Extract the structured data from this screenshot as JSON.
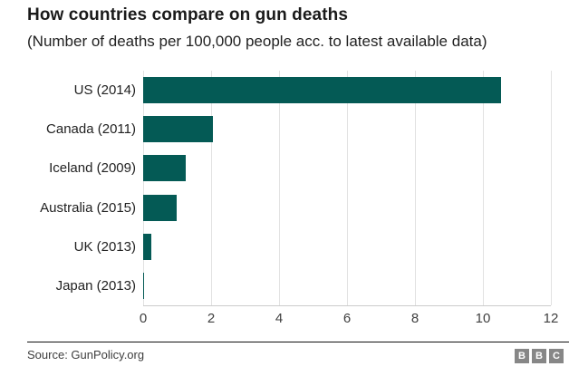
{
  "page": {
    "title": "How countries compare on gun deaths",
    "subtitle": "(Number of deaths per 100,000 people acc. to latest available data)"
  },
  "chart_data": {
    "type": "bar",
    "orientation": "horizontal",
    "title": "How countries compare on gun deaths",
    "subtitle": "(Number of deaths per 100,000 people acc. to latest available data)",
    "categories": [
      "US (2014)",
      "Canada (2011)",
      "Iceland (2009)",
      "Australia (2015)",
      "UK (2013)",
      "Japan (2013)"
    ],
    "values": [
      10.54,
      2.05,
      1.25,
      0.98,
      0.23,
      0.01
    ],
    "xlabel": "",
    "ylabel": "",
    "xlim": [
      0,
      12
    ],
    "xticks": [
      0,
      2,
      4,
      6,
      8,
      10,
      12
    ],
    "grid": true,
    "legend": false,
    "bar_color": "#045a55"
  },
  "footer": {
    "source": "Source: GunPolicy.org",
    "logo_letters": [
      "B",
      "B",
      "C"
    ]
  },
  "colors": {
    "bar": "#045a55",
    "gridline": "#e2e2e2",
    "axis_line": "#cccccc",
    "title_text": "#1a1a1a",
    "body_text": "#222222",
    "tick_text": "#404040",
    "separator": "#111111",
    "logo_background": "#878787"
  }
}
